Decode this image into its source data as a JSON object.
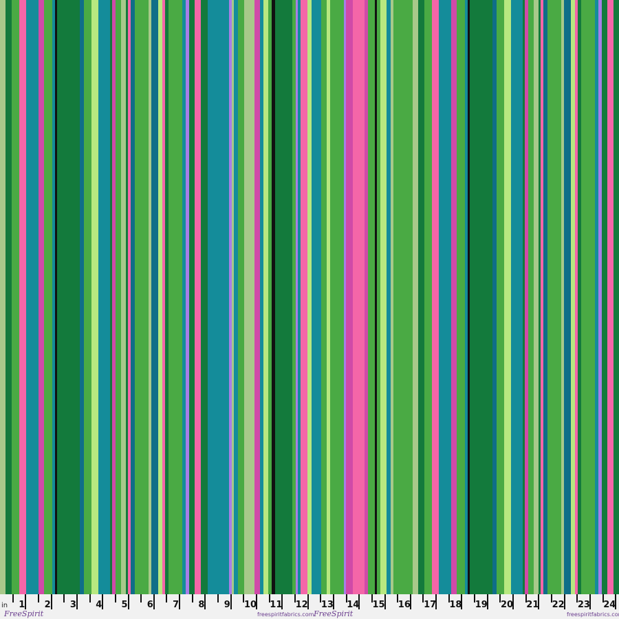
{
  "fabric": {
    "colors": {
      "sage": "#a8c98a",
      "dark_green": "#137a3c",
      "green": "#4aaa44",
      "pink": "#f466a8",
      "teal": "#148c9a",
      "deep_teal": "#0f6e88",
      "magenta": "#d04aa8",
      "lime": "#b8e880",
      "purple": "#a87ee8",
      "black": "#111111"
    }
  },
  "ruler": {
    "unit": "in",
    "numbers": [
      "1",
      "2",
      "3",
      "4",
      "5",
      "6",
      "7",
      "8",
      "9",
      "10",
      "11",
      "12",
      "13",
      "14",
      "15",
      "16",
      "17",
      "18",
      "19",
      "20",
      "21",
      "22",
      "23",
      "24"
    ],
    "logo_text": "FreeSpirit",
    "website": "freespiritfabrics.com"
  }
}
